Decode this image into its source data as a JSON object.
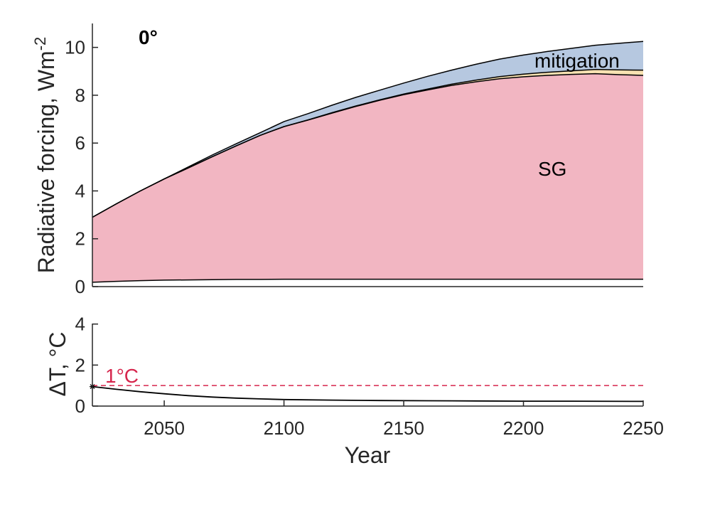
{
  "chart_data": [
    {
      "type": "area",
      "panel_label": "0°",
      "xlabel": "",
      "ylabel": "Radiative forcing, Wm",
      "ylabel_superscript": "-2",
      "xlim": [
        2020,
        2250
      ],
      "ylim": [
        0,
        11
      ],
      "yticks": [
        0,
        2,
        4,
        6,
        8,
        10
      ],
      "x": [
        2020,
        2030,
        2040,
        2050,
        2060,
        2070,
        2080,
        2090,
        2100,
        2110,
        2120,
        2130,
        2140,
        2150,
        2160,
        2170,
        2180,
        2190,
        2200,
        2210,
        2220,
        2230,
        2240,
        2250
      ],
      "series": [
        {
          "name": "",
          "color": "#ffffff",
          "values": [
            0.18,
            0.22,
            0.25,
            0.27,
            0.28,
            0.29,
            0.3,
            0.3,
            0.31,
            0.31,
            0.31,
            0.31,
            0.31,
            0.31,
            0.31,
            0.31,
            0.31,
            0.31,
            0.31,
            0.31,
            0.31,
            0.31,
            0.31,
            0.31
          ]
        },
        {
          "name": "SG",
          "color": "#f2b6c2",
          "values": [
            2.72,
            3.24,
            3.75,
            4.23,
            4.68,
            5.14,
            5.58,
            6.02,
            6.38,
            6.65,
            6.94,
            7.22,
            7.48,
            7.71,
            7.91,
            8.1,
            8.25,
            8.38,
            8.46,
            8.52,
            8.56,
            8.59,
            8.55,
            8.52
          ]
        },
        {
          "name": "",
          "color": "#f8e2b2",
          "values": [
            0.0,
            0.0,
            0.0,
            0.0,
            0.0,
            0.0,
            0.0,
            0.0,
            0.0,
            0.01,
            0.02,
            0.02,
            0.02,
            0.03,
            0.04,
            0.05,
            0.07,
            0.09,
            0.11,
            0.13,
            0.15,
            0.18,
            0.2,
            0.22
          ]
        },
        {
          "name": "mitigation",
          "color": "#b6c8e0",
          "values": [
            0.0,
            0.0,
            0.0,
            0.0,
            0.04,
            0.07,
            0.09,
            0.11,
            0.21,
            0.26,
            0.31,
            0.36,
            0.4,
            0.46,
            0.53,
            0.59,
            0.66,
            0.73,
            0.8,
            0.87,
            0.94,
            1.01,
            1.11,
            1.2
          ]
        }
      ]
    },
    {
      "type": "line",
      "xlabel": "Year",
      "ylabel": "ΔT, °C",
      "xlim": [
        2020,
        2250
      ],
      "ylim": [
        0,
        4.3
      ],
      "xticks": [
        2050,
        2100,
        2150,
        2200,
        2250
      ],
      "yticks": [
        0,
        2,
        4
      ],
      "x": [
        2020,
        2030,
        2040,
        2050,
        2060,
        2070,
        2080,
        2090,
        2100,
        2120,
        2140,
        2160,
        2180,
        2200,
        2220,
        2250
      ],
      "series": [
        {
          "name": "",
          "color": "#000000",
          "values": [
            0.95,
            0.82,
            0.7,
            0.6,
            0.51,
            0.44,
            0.39,
            0.35,
            0.32,
            0.29,
            0.27,
            0.26,
            0.25,
            0.24,
            0.24,
            0.23
          ]
        }
      ],
      "reference_line": {
        "value": 1,
        "label": "1°C",
        "color": "#d6254c"
      }
    }
  ]
}
